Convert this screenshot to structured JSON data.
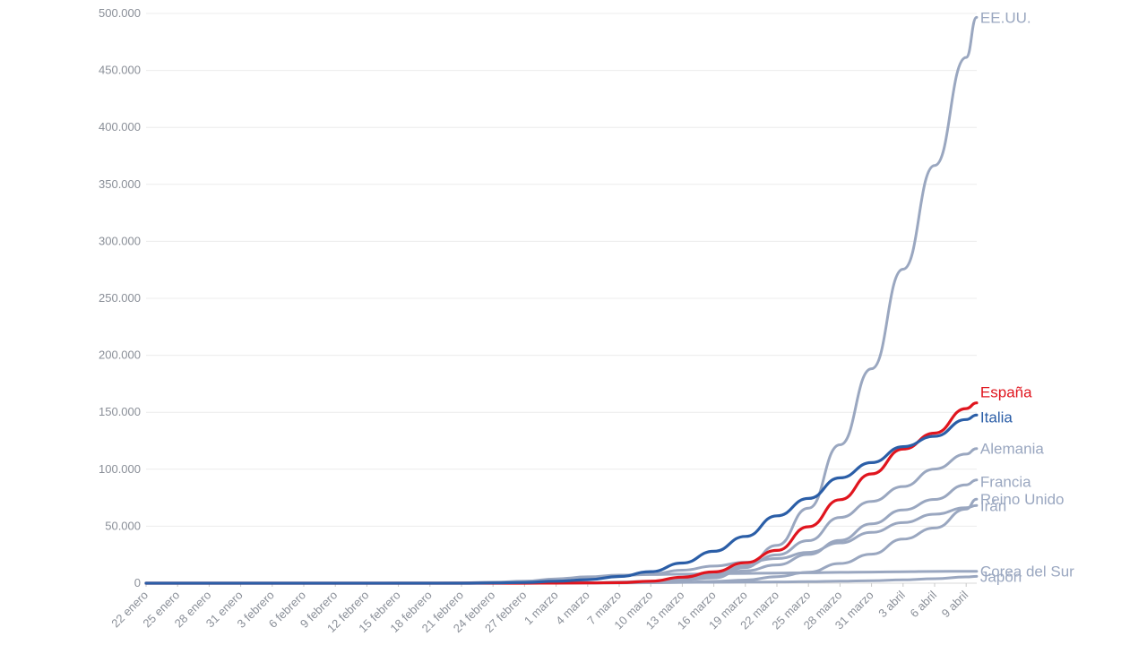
{
  "chart_data": {
    "type": "line",
    "title": "",
    "xlabel": "",
    "ylabel": "",
    "ylim": [
      0,
      500000
    ],
    "grid": true,
    "legend": "labels at line ends",
    "y_ticks": [
      "0",
      "50.000",
      "100.000",
      "150.000",
      "200.000",
      "250.000",
      "300.000",
      "350.000",
      "400.000",
      "450.000",
      "500.000"
    ],
    "x_ticks": [
      "22 enero",
      "25 enero",
      "28 enero",
      "31 enero",
      "3 febrero",
      "6 febrero",
      "9 febrero",
      "12 febrero",
      "15 febrero",
      "18 febrero",
      "21 febrero",
      "24 febrero",
      "27 febrero",
      "1 marzo",
      "4 marzo",
      "7 marzo",
      "10 marzo",
      "13 marzo",
      "16 marzo",
      "19 marzo",
      "22 marzo",
      "25 marzo",
      "28 marzo",
      "31 marzo",
      "3 abril",
      "6 abril",
      "9 abril"
    ],
    "x": [
      "22 enero",
      "25 enero",
      "28 enero",
      "31 enero",
      "3 febrero",
      "6 febrero",
      "9 febrero",
      "12 febrero",
      "15 febrero",
      "18 febrero",
      "21 febrero",
      "24 febrero",
      "27 febrero",
      "1 marzo",
      "4 marzo",
      "7 marzo",
      "10 marzo",
      "13 marzo",
      "16 marzo",
      "19 marzo",
      "22 marzo",
      "25 marzo",
      "28 marzo",
      "31 marzo",
      "3 abril",
      "6 abril",
      "9 abril",
      "10 abril"
    ],
    "series": [
      {
        "name": "EE.UU.",
        "color": "#9aa7c0",
        "values": [
          1,
          5,
          5,
          7,
          11,
          12,
          12,
          13,
          15,
          15,
          35,
          53,
          60,
          75,
          149,
          402,
          959,
          2727,
          4632,
          13680,
          33276,
          65778,
          121478,
          188172,
          275586,
          366614,
          461437,
          496535
        ]
      },
      {
        "name": "España",
        "color": "#e0151e",
        "values": [
          0,
          0,
          0,
          0,
          1,
          1,
          2,
          2,
          2,
          2,
          2,
          2,
          15,
          84,
          222,
          500,
          1695,
          5232,
          9942,
          17963,
          28768,
          49515,
          73235,
          95923,
          117710,
          131646,
          153222,
          158273
        ]
      },
      {
        "name": "Italia",
        "color": "#2b5ea7",
        "values": [
          0,
          0,
          0,
          2,
          2,
          2,
          3,
          3,
          3,
          3,
          20,
          229,
          655,
          1694,
          3089,
          5883,
          10149,
          17660,
          27980,
          41035,
          59138,
          74386,
          92472,
          105792,
          119827,
          128948,
          143626,
          147577
        ]
      },
      {
        "name": "Alemania",
        "color": "#9aa7c0",
        "values": [
          0,
          0,
          4,
          5,
          12,
          12,
          14,
          16,
          16,
          16,
          16,
          16,
          46,
          130,
          262,
          800,
          1457,
          3675,
          7272,
          15320,
          24873,
          37323,
          57695,
          71808,
          84794,
          100123,
          113296,
          118181
        ]
      },
      {
        "name": "Francia",
        "color": "#9aa7c0",
        "values": [
          0,
          3,
          4,
          5,
          6,
          6,
          11,
          11,
          12,
          12,
          12,
          12,
          57,
          130,
          285,
          949,
          1784,
          3661,
          6633,
          10871,
          16018,
          25233,
          37575,
          52128,
          64338,
          73488,
          86334,
          90676
        ]
      },
      {
        "name": "Reino Unido",
        "color": "#9aa7c0",
        "values": [
          0,
          0,
          0,
          2,
          2,
          2,
          3,
          9,
          9,
          9,
          9,
          13,
          15,
          36,
          87,
          209,
          373,
          798,
          1551,
          2716,
          5741,
          9640,
          17312,
          25474,
          38689,
          48440,
          65077,
          73758
        ]
      },
      {
        "name": "Irán",
        "color": "#9aa7c0",
        "values": [
          0,
          0,
          0,
          0,
          0,
          0,
          0,
          0,
          0,
          0,
          5,
          61,
          245,
          978,
          3513,
          6566,
          8042,
          11364,
          14991,
          18407,
          21638,
          27017,
          35408,
          44605,
          53183,
          60500,
          66220,
          68192
        ]
      },
      {
        "name": "Corea del Sur",
        "color": "#9aa7c0",
        "values": [
          1,
          2,
          4,
          11,
          15,
          23,
          27,
          28,
          28,
          31,
          204,
          833,
          1766,
          3736,
          5621,
          7041,
          7513,
          7979,
          8236,
          8565,
          8897,
          9137,
          9478,
          9786,
          10062,
          10284,
          10423,
          10450
        ]
      },
      {
        "name": "Japón",
        "color": "#9aa7c0",
        "values": [
          2,
          2,
          7,
          15,
          20,
          25,
          26,
          28,
          41,
          65,
          93,
          144,
          186,
          239,
          293,
          455,
          568,
          675,
          814,
          924,
          1089,
          1307,
          1693,
          2178,
          2935,
          3906,
          5530,
          6005
        ]
      }
    ]
  }
}
